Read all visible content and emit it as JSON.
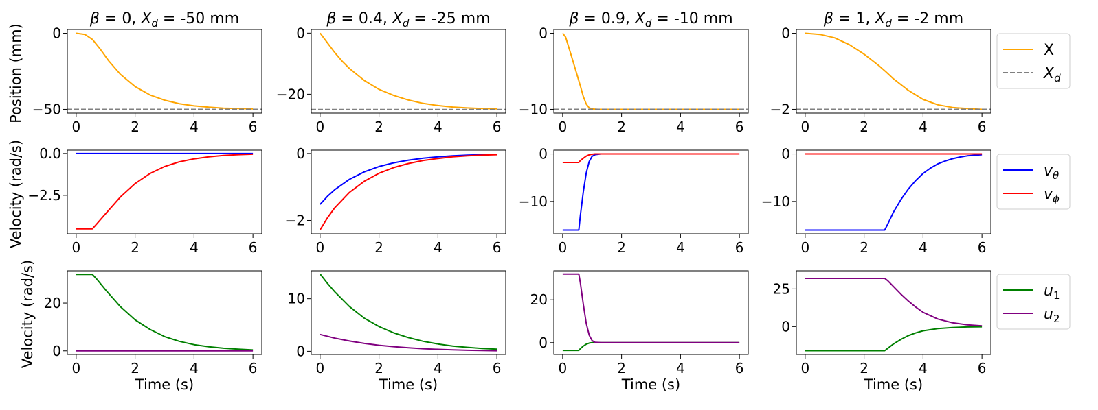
{
  "figure": {
    "row_ylabels": [
      "Position (mm)",
      "Velocity (rad/s)",
      "Velocity (rad/s)"
    ],
    "xlabel": "Time (s)"
  },
  "colors": {
    "X": "#FFA500",
    "Xd": "#808080",
    "v_theta": "#0000FF",
    "v_phi": "#FF0000",
    "u1": "#008000",
    "u2": "#800080"
  },
  "legends": [
    [
      {
        "main": "X",
        "sub": "",
        "color": "#FFA500",
        "dash": false
      },
      {
        "main": "X",
        "sub": "d",
        "color": "#808080",
        "dash": true
      }
    ],
    [
      {
        "main": "v",
        "sub": "θ",
        "color": "#0000FF",
        "dash": false
      },
      {
        "main": "v",
        "sub": "ϕ",
        "color": "#FF0000",
        "dash": false
      }
    ],
    [
      {
        "main": "u",
        "sub": "1",
        "color": "#008000",
        "dash": false
      },
      {
        "main": "u",
        "sub": "2",
        "color": "#800080",
        "dash": false
      }
    ]
  ],
  "chart_data": [
    {
      "type": "line",
      "row": 0,
      "col": 0,
      "title": "β = 0, X_d = -50 mm",
      "title_parts": {
        "beta": "β = 0, ",
        "x": "X",
        "sub": "d",
        "rest": " = -50 mm"
      },
      "xlabel": "",
      "ylabel": "Position (mm)",
      "xlim": [
        -0.3,
        6.3
      ],
      "ylim": [
        -52.5,
        2.5
      ],
      "xticks": [
        0,
        2,
        4,
        6
      ],
      "yticks": [
        0,
        -50
      ],
      "tick_labels": [
        "0",
        "−50"
      ],
      "series": [
        {
          "name": "X",
          "color": "#FFA500",
          "x": [
            0,
            0.3,
            0.55,
            0.8,
            1.1,
            1.5,
            2,
            2.5,
            3,
            3.5,
            4,
            4.5,
            5,
            5.5,
            6
          ],
          "y": [
            0,
            -0.8,
            -4,
            -10,
            -18,
            -27,
            -35,
            -40.5,
            -44,
            -46.3,
            -47.7,
            -48.6,
            -49.2,
            -49.5,
            -49.7
          ]
        },
        {
          "name": "X_d",
          "color": "#808080",
          "dash": true,
          "x": [
            -0.3,
            6.3
          ],
          "y": [
            -50,
            -50
          ]
        }
      ]
    },
    {
      "type": "line",
      "row": 0,
      "col": 1,
      "title": "β = 0.4, X_d = -25 mm",
      "title_parts": {
        "beta": "β = 0.4, ",
        "x": "X",
        "sub": "d",
        "rest": " = -25 mm"
      },
      "xlabel": "",
      "ylabel": "",
      "xlim": [
        -0.3,
        6.3
      ],
      "ylim": [
        -26.2,
        1.2
      ],
      "xticks": [
        0,
        2,
        4,
        6
      ],
      "yticks": [
        0,
        -20
      ],
      "tick_labels": [
        "0",
        "−20"
      ],
      "series": [
        {
          "name": "X",
          "color": "#FFA500",
          "x": [
            0,
            0.25,
            0.5,
            0.75,
            1,
            1.5,
            2,
            2.5,
            3,
            3.5,
            4,
            4.5,
            5,
            5.5,
            6
          ],
          "y": [
            0,
            -3.2,
            -6.4,
            -9.2,
            -11.6,
            -15.5,
            -18.4,
            -20.4,
            -21.9,
            -23,
            -23.7,
            -24.2,
            -24.5,
            -24.7,
            -24.8
          ]
        },
        {
          "name": "X_d",
          "color": "#808080",
          "dash": true,
          "x": [
            -0.3,
            6.3
          ],
          "y": [
            -25,
            -25
          ]
        }
      ]
    },
    {
      "type": "line",
      "row": 0,
      "col": 2,
      "title": "β = 0.9, X_d = -10 mm",
      "title_parts": {
        "beta": "β = 0.9, ",
        "x": "X",
        "sub": "d",
        "rest": " = -10 mm"
      },
      "xlabel": "",
      "ylabel": "",
      "xlim": [
        -0.3,
        6.3
      ],
      "ylim": [
        -10.5,
        0.5
      ],
      "xticks": [
        0,
        2,
        4,
        6
      ],
      "yticks": [
        0,
        -10
      ],
      "tick_labels": [
        "0",
        "−10"
      ],
      "series": [
        {
          "name": "X",
          "color": "#FFA500",
          "x": [
            0,
            0.1,
            0.3,
            0.5,
            0.6,
            0.7,
            0.8,
            0.9,
            1,
            1.2,
            1.5,
            2,
            6
          ],
          "y": [
            0,
            -0.5,
            -3,
            -5.6,
            -6.9,
            -8.3,
            -9.3,
            -9.8,
            -9.95,
            -10,
            -10,
            -10,
            -10
          ]
        },
        {
          "name": "X_d",
          "color": "#808080",
          "dash": true,
          "x": [
            -0.3,
            6.3
          ],
          "y": [
            -10,
            -10
          ]
        }
      ]
    },
    {
      "type": "line",
      "row": 0,
      "col": 3,
      "title": "β = 1, X_d = -2 mm",
      "title_parts": {
        "beta": "β = 1, ",
        "x": "X",
        "sub": "d",
        "rest": " = -2 mm"
      },
      "xlabel": "",
      "ylabel": "",
      "xlim": [
        -0.3,
        6.3
      ],
      "ylim": [
        -2.1,
        0.1
      ],
      "xticks": [
        0,
        2,
        4,
        6
      ],
      "yticks": [
        0,
        -2
      ],
      "tick_labels": [
        "0",
        "−2"
      ],
      "series": [
        {
          "name": "X",
          "color": "#FFA500",
          "x": [
            0,
            0.5,
            1,
            1.5,
            2,
            2.5,
            2.75,
            3,
            3.5,
            4,
            4.5,
            5,
            5.5,
            6
          ],
          "y": [
            0,
            -0.03,
            -0.12,
            -0.3,
            -0.55,
            -0.85,
            -1.02,
            -1.2,
            -1.5,
            -1.74,
            -1.88,
            -1.95,
            -1.98,
            -2
          ]
        },
        {
          "name": "X_d",
          "color": "#808080",
          "dash": true,
          "x": [
            -0.3,
            6.3
          ],
          "y": [
            -2,
            -2
          ]
        }
      ]
    },
    {
      "type": "line",
      "row": 1,
      "col": 0,
      "title": "",
      "xlabel": "",
      "ylabel": "Velocity (rad/s)",
      "xlim": [
        -0.3,
        6.3
      ],
      "ylim": [
        -4.8,
        0.2
      ],
      "xticks": [
        0,
        2,
        4,
        6
      ],
      "yticks": [
        0,
        -2.5
      ],
      "tick_labels": [
        "0.0",
        "−2.5"
      ],
      "series": [
        {
          "name": "v_θ",
          "color": "#0000FF",
          "x": [
            0,
            6
          ],
          "y": [
            0,
            0
          ]
        },
        {
          "name": "v_ϕ",
          "color": "#FF0000",
          "x": [
            0,
            0.55,
            0.7,
            1,
            1.5,
            2,
            2.5,
            3,
            3.5,
            4,
            4.5,
            5,
            5.5,
            6
          ],
          "y": [
            -4.5,
            -4.5,
            -4.2,
            -3.6,
            -2.6,
            -1.8,
            -1.2,
            -0.78,
            -0.5,
            -0.32,
            -0.2,
            -0.12,
            -0.07,
            -0.04
          ]
        }
      ]
    },
    {
      "type": "line",
      "row": 1,
      "col": 1,
      "title": "",
      "xlabel": "",
      "ylabel": "",
      "xlim": [
        -0.3,
        6.3
      ],
      "ylim": [
        -2.4,
        0.1
      ],
      "xticks": [
        0,
        2,
        4,
        6
      ],
      "yticks": [
        0,
        -2
      ],
      "tick_labels": [
        "0",
        "−2"
      ],
      "series": [
        {
          "name": "v_θ",
          "color": "#0000FF",
          "x": [
            0,
            0.25,
            0.5,
            1,
            1.5,
            2,
            2.5,
            3,
            3.5,
            4,
            4.5,
            5,
            5.5,
            6
          ],
          "y": [
            -1.52,
            -1.28,
            -1.08,
            -0.77,
            -0.55,
            -0.39,
            -0.28,
            -0.2,
            -0.14,
            -0.1,
            -0.07,
            -0.05,
            -0.035,
            -0.025
          ]
        },
        {
          "name": "v_ϕ",
          "color": "#FF0000",
          "x": [
            0,
            0.25,
            0.5,
            1,
            1.5,
            2,
            2.5,
            3,
            3.5,
            4,
            4.5,
            5,
            5.5,
            6
          ],
          "y": [
            -2.28,
            -1.92,
            -1.62,
            -1.16,
            -0.83,
            -0.59,
            -0.42,
            -0.3,
            -0.21,
            -0.15,
            -0.1,
            -0.07,
            -0.05,
            -0.035
          ]
        }
      ]
    },
    {
      "type": "line",
      "row": 1,
      "col": 2,
      "title": "",
      "xlabel": "",
      "ylabel": "",
      "xlim": [
        -0.3,
        6.3
      ],
      "ylim": [
        -16.8,
        0.8
      ],
      "xticks": [
        0,
        2,
        4,
        6
      ],
      "yticks": [
        0,
        -10
      ],
      "tick_labels": [
        "0",
        "−10"
      ],
      "series": [
        {
          "name": "v_θ",
          "color": "#0000FF",
          "x": [
            0,
            0.55,
            0.6,
            0.7,
            0.8,
            0.9,
            1,
            1.1,
            1.3,
            6
          ],
          "y": [
            -16,
            -16,
            -13,
            -8,
            -4,
            -1.6,
            -0.5,
            -0.15,
            0,
            0
          ]
        },
        {
          "name": "v_ϕ",
          "color": "#FF0000",
          "x": [
            0,
            0.55,
            0.6,
            0.7,
            0.8,
            0.9,
            1,
            1.1,
            1.3,
            6
          ],
          "y": [
            -1.8,
            -1.8,
            -1.4,
            -0.9,
            -0.45,
            -0.18,
            -0.06,
            0,
            0,
            0
          ]
        }
      ]
    },
    {
      "type": "line",
      "row": 1,
      "col": 3,
      "title": "",
      "xlabel": "",
      "ylabel": "",
      "xlim": [
        -0.3,
        6.3
      ],
      "ylim": [
        -16.8,
        0.8
      ],
      "xticks": [
        0,
        2,
        4,
        6
      ],
      "yticks": [
        0,
        -10
      ],
      "tick_labels": [
        "0",
        "−10"
      ],
      "series": [
        {
          "name": "v_θ",
          "color": "#0000FF",
          "x": [
            0,
            2.7,
            2.8,
            3,
            3.25,
            3.5,
            3.75,
            4,
            4.25,
            4.5,
            4.75,
            5,
            5.25,
            5.5,
            6
          ],
          "y": [
            -16,
            -16,
            -14.8,
            -12.2,
            -9.6,
            -7.4,
            -5.6,
            -4.1,
            -3,
            -2.1,
            -1.5,
            -1,
            -0.65,
            -0.4,
            -0.15
          ]
        },
        {
          "name": "v_ϕ",
          "color": "#FF0000",
          "x": [
            0,
            6
          ],
          "y": [
            0,
            0
          ]
        }
      ]
    },
    {
      "type": "line",
      "row": 2,
      "col": 0,
      "title": "",
      "xlabel": "Time (s)",
      "ylabel": "Velocity (rad/s)",
      "xlim": [
        -0.3,
        6.3
      ],
      "ylim": [
        -1.5,
        33.5
      ],
      "xticks": [
        0,
        2,
        4,
        6
      ],
      "yticks": [
        0,
        20
      ],
      "tick_labels": [
        "0",
        "20"
      ],
      "series": [
        {
          "name": "u_1",
          "color": "#008000",
          "x": [
            0,
            0.55,
            0.7,
            1,
            1.5,
            2,
            2.5,
            3,
            3.5,
            4,
            4.5,
            5,
            5.5,
            6
          ],
          "y": [
            32,
            32,
            30,
            25.5,
            18.5,
            13,
            9,
            6,
            4,
            2.6,
            1.7,
            1.1,
            0.7,
            0.4
          ]
        },
        {
          "name": "u_2",
          "color": "#800080",
          "x": [
            0,
            6
          ],
          "y": [
            0,
            0
          ]
        }
      ]
    },
    {
      "type": "line",
      "row": 2,
      "col": 1,
      "title": "",
      "xlabel": "Time (s)",
      "ylabel": "",
      "xlim": [
        -0.3,
        6.3
      ],
      "ylim": [
        -0.6,
        15.3
      ],
      "xticks": [
        0,
        2,
        4,
        6
      ],
      "yticks": [
        0,
        10
      ],
      "tick_labels": [
        "0",
        "10"
      ],
      "series": [
        {
          "name": "u_1",
          "color": "#008000",
          "x": [
            0,
            0.25,
            0.5,
            1,
            1.5,
            2,
            2.5,
            3,
            3.5,
            4,
            4.5,
            5,
            5.5,
            6
          ],
          "y": [
            14.7,
            12.9,
            11.3,
            8.5,
            6.3,
            4.7,
            3.5,
            2.6,
            1.9,
            1.4,
            1,
            0.75,
            0.55,
            0.4
          ]
        },
        {
          "name": "u_2",
          "color": "#800080",
          "x": [
            0,
            0.5,
            1,
            1.5,
            2,
            2.5,
            3,
            3.5,
            4,
            4.5,
            5,
            5.5,
            6
          ],
          "y": [
            3.2,
            2.5,
            1.95,
            1.5,
            1.15,
            0.88,
            0.67,
            0.5,
            0.38,
            0.28,
            0.2,
            0.15,
            0.1
          ]
        }
      ]
    },
    {
      "type": "line",
      "row": 2,
      "col": 2,
      "title": "",
      "xlabel": "Time (s)",
      "ylabel": "",
      "xlim": [
        -0.3,
        6.3
      ],
      "ylim": [
        -5.5,
        33.5
      ],
      "xticks": [
        0,
        2,
        4,
        6
      ],
      "yticks": [
        0,
        20
      ],
      "tick_labels": [
        "0",
        "20"
      ],
      "series": [
        {
          "name": "u_1",
          "color": "#008000",
          "x": [
            0,
            0.55,
            0.6,
            0.7,
            0.8,
            0.9,
            1,
            1.2,
            6
          ],
          "y": [
            -3.6,
            -3.6,
            -2.8,
            -1.6,
            -0.7,
            -0.2,
            0,
            0,
            0
          ]
        },
        {
          "name": "u_2",
          "color": "#800080",
          "x": [
            0,
            0.55,
            0.6,
            0.7,
            0.8,
            0.9,
            1,
            1.1,
            1.3,
            6
          ],
          "y": [
            32,
            32,
            28,
            18,
            9,
            3.5,
            1,
            0.2,
            0,
            0
          ]
        }
      ]
    },
    {
      "type": "line",
      "row": 2,
      "col": 3,
      "title": "",
      "xlabel": "Time (s)",
      "ylabel": "",
      "xlim": [
        -0.3,
        6.3
      ],
      "ylim": [
        -18.5,
        37
      ],
      "xticks": [
        0,
        2,
        4,
        6
      ],
      "yticks": [
        0,
        25
      ],
      "tick_labels": [
        "0",
        "25"
      ],
      "series": [
        {
          "name": "u_1",
          "color": "#008000",
          "x": [
            0,
            2.7,
            2.8,
            3,
            3.25,
            3.5,
            3.75,
            4,
            4.5,
            5,
            5.5,
            6
          ],
          "y": [
            -16,
            -16,
            -14.5,
            -11.5,
            -8.5,
            -6,
            -4.2,
            -2.8,
            -1.3,
            -0.6,
            -0.25,
            -0.1
          ]
        },
        {
          "name": "u_2",
          "color": "#800080",
          "x": [
            0,
            2.7,
            2.8,
            3,
            3.25,
            3.5,
            3.75,
            4,
            4.5,
            5,
            5.5,
            6
          ],
          "y": [
            32,
            32,
            30.5,
            26.5,
            21.5,
            17,
            13,
            9.5,
            5,
            2.5,
            1.2,
            0.5
          ]
        }
      ]
    }
  ]
}
